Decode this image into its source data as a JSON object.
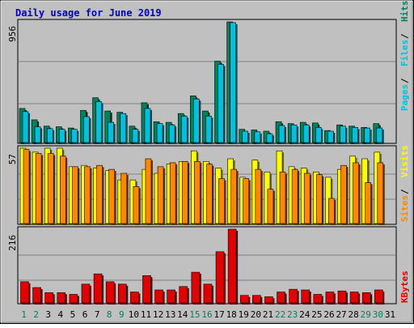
{
  "colors": {
    "background": "#c0c0c0",
    "border": "#000000",
    "title": "#0000cc",
    "hits": "#00805c",
    "files": "#00c0e0",
    "pages": "#00c0e0",
    "visits": "#ffff00",
    "sites": "#ff8800",
    "kbytes": "#e00000",
    "weekend_day_label": "#00805c"
  },
  "chart_data": [
    {
      "type": "bar",
      "title": "Daily usage for June 2019",
      "categories": [
        "1",
        "2",
        "3",
        "4",
        "5",
        "6",
        "7",
        "8",
        "9",
        "10",
        "11",
        "12",
        "13",
        "14",
        "15",
        "16",
        "17",
        "18",
        "19",
        "20",
        "21",
        "22",
        "23",
        "24",
        "25",
        "26",
        "27",
        "28",
        "29",
        "30",
        "31"
      ],
      "weekend_days": [
        "1",
        "2",
        "8",
        "9",
        "15",
        "16",
        "22",
        "23",
        "29",
        "30"
      ],
      "ylim": [
        0,
        956
      ],
      "ymax_label": "956",
      "legend": [
        "Pages",
        "Files",
        "Hits"
      ],
      "series": [
        {
          "name": "Hits",
          "values": [
            270,
            180,
            130,
            125,
            115,
            255,
            355,
            250,
            240,
            130,
            315,
            165,
            160,
            230,
            370,
            250,
            645,
            956,
            105,
            100,
            90,
            165,
            150,
            160,
            155,
            95,
            140,
            130,
            120,
            150,
            0
          ]
        },
        {
          "name": "Files",
          "values": [
            245,
            125,
            110,
            105,
            105,
            205,
            325,
            160,
            230,
            105,
            270,
            150,
            140,
            210,
            345,
            210,
            620,
            950,
            90,
            85,
            70,
            135,
            140,
            140,
            120,
            90,
            130,
            120,
            115,
            115,
            0
          ]
        },
        {
          "name": "Pages",
          "values": [
            0,
            0,
            0,
            0,
            0,
            0,
            0,
            0,
            0,
            0,
            0,
            0,
            0,
            0,
            0,
            0,
            0,
            0,
            0,
            0,
            0,
            0,
            0,
            0,
            0,
            0,
            0,
            0,
            0,
            0,
            0
          ]
        }
      ]
    },
    {
      "type": "bar",
      "ylim": [
        0,
        57
      ],
      "ymax_label": "57",
      "legend": [
        "Sites",
        "Visits"
      ],
      "series": [
        {
          "name": "Visits",
          "values": [
            57,
            54,
            57,
            57,
            43,
            44,
            42,
            40,
            33,
            33,
            41,
            38,
            45,
            47,
            55,
            47,
            42,
            49,
            35,
            48,
            39,
            55,
            43,
            42,
            39,
            35,
            41,
            51,
            49,
            54,
            0
          ]
        },
        {
          "name": "Sites",
          "values": [
            56,
            53,
            53,
            51,
            43,
            43,
            44,
            41,
            38,
            28,
            49,
            43,
            46,
            47,
            47,
            45,
            34,
            41,
            34,
            41,
            26,
            39,
            41,
            38,
            37,
            19,
            44,
            46,
            31,
            46,
            0
          ]
        }
      ]
    },
    {
      "type": "bar",
      "ylim": [
        0,
        216
      ],
      "ymax_label": "216",
      "legend": [
        "KBytes"
      ],
      "series": [
        {
          "name": "KBytes",
          "values": [
            62,
            45,
            30,
            30,
            25,
            55,
            85,
            62,
            55,
            32,
            80,
            38,
            38,
            48,
            90,
            55,
            150,
            216,
            22,
            22,
            18,
            32,
            40,
            38,
            25,
            32,
            35,
            32,
            30,
            38,
            0
          ]
        }
      ]
    }
  ]
}
